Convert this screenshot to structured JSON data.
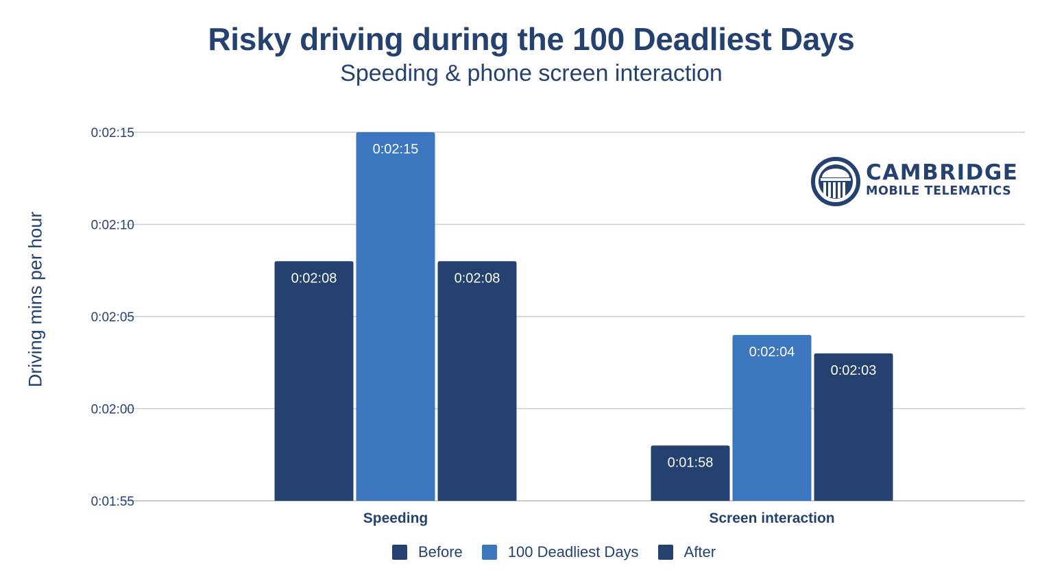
{
  "chart_data": {
    "type": "bar",
    "title": "Risky driving during the 100 Deadliest Days",
    "subtitle": "Speeding & phone screen interaction",
    "xlabel": "",
    "ylabel": "Driving mins per hour",
    "categories": [
      "Speeding",
      "Screen interaction"
    ],
    "series": [
      {
        "name": "Before",
        "color": "#24416f",
        "values": [
          128,
          118
        ],
        "labels": [
          "0:02:08",
          "0:01:58"
        ]
      },
      {
        "name": "100 Deadliest Days",
        "color": "#3b76be",
        "values": [
          135,
          124
        ],
        "labels": [
          "0:02:15",
          "0:02:04"
        ]
      },
      {
        "name": "After",
        "color": "#24416f",
        "values": [
          128,
          123
        ],
        "labels": [
          "0:02:08",
          "0:02:03"
        ]
      }
    ],
    "value_units": "seconds",
    "ylim": [
      115,
      135
    ],
    "yticks": [
      115,
      120,
      125,
      130,
      135
    ],
    "ytick_labels": [
      "0:01:55",
      "0:02:00",
      "0:02:05",
      "0:02:10",
      "0:02:15"
    ],
    "grid": true,
    "legend_position": "bottom"
  },
  "logo": {
    "line1": "CAMBRIDGE",
    "line2": "MOBILE TELEMATICS",
    "icon": "building-columns-icon"
  },
  "colors": {
    "text": "#24416f",
    "grid": "#cccccc"
  }
}
